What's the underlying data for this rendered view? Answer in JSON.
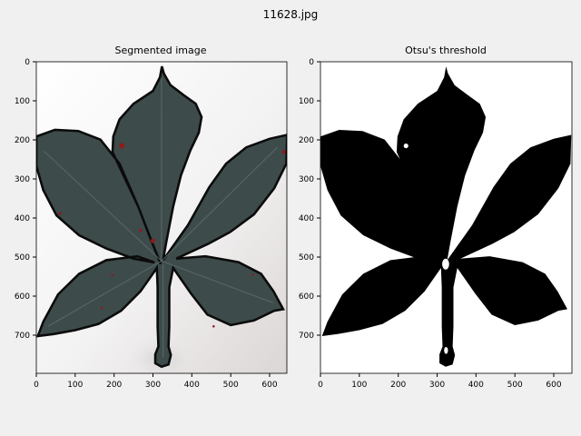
{
  "figure": {
    "title": "11628.jpg"
  },
  "panels": [
    {
      "title": "Segmented image",
      "xticks": [
        "0",
        "100",
        "200",
        "300",
        "400",
        "500",
        "600"
      ],
      "yticks": [
        "0",
        "100",
        "200",
        "300",
        "400",
        "500",
        "600",
        "700"
      ],
      "colors": {
        "leaf": "#3d4b4a",
        "background": "#f6f4f3",
        "outline": "#0b0b0b",
        "edge_spots": "#8b1d1d"
      }
    },
    {
      "title": "Otsu's threshold",
      "xticks": [
        "0",
        "100",
        "200",
        "300",
        "400",
        "500",
        "600"
      ],
      "yticks": [
        "0",
        "100",
        "200",
        "300",
        "400",
        "500",
        "600",
        "700"
      ],
      "colors": {
        "leaf": "#000000",
        "background": "#ffffff"
      }
    }
  ]
}
